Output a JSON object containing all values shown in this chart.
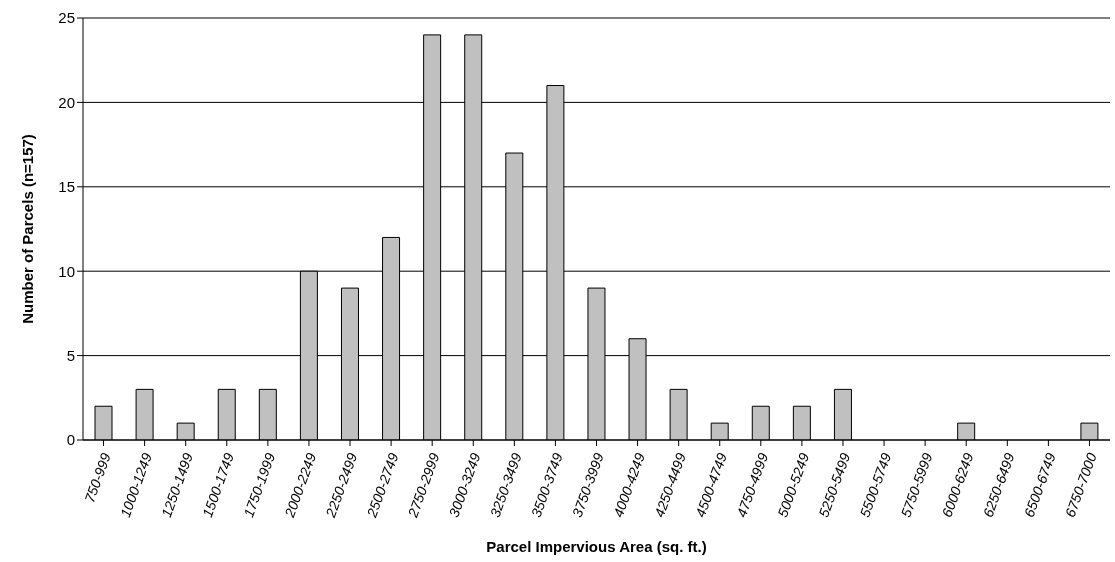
{
  "chart_data": {
    "type": "bar",
    "xlabel": "Parcel Impervious Area (sq. ft.)",
    "ylabel": "Number of Parcels (n=157)",
    "categories": [
      "750-999",
      "1000-1249",
      "1250-1499",
      "1500-1749",
      "1750-1999",
      "2000-2249",
      "2250-2499",
      "2500-2749",
      "2750-2999",
      "3000-3249",
      "3250-3499",
      "3500-3749",
      "3750-3999",
      "4000-4249",
      "4250-4499",
      "4500-4749",
      "4750-4999",
      "5000-5249",
      "5250-5499",
      "5500-5749",
      "5750-5999",
      "6000-6249",
      "6250-6499",
      "6500-6749",
      "6750-7000"
    ],
    "values": [
      2,
      3,
      1,
      3,
      3,
      10,
      9,
      12,
      24,
      24,
      17,
      21,
      9,
      6,
      3,
      1,
      2,
      2,
      3,
      0,
      0,
      1,
      0,
      0,
      1
    ],
    "color": "#c0c0c0",
    "ylim": [
      0,
      25
    ],
    "yticks": [
      0,
      5,
      10,
      15,
      20,
      25
    ],
    "grid": "y"
  }
}
